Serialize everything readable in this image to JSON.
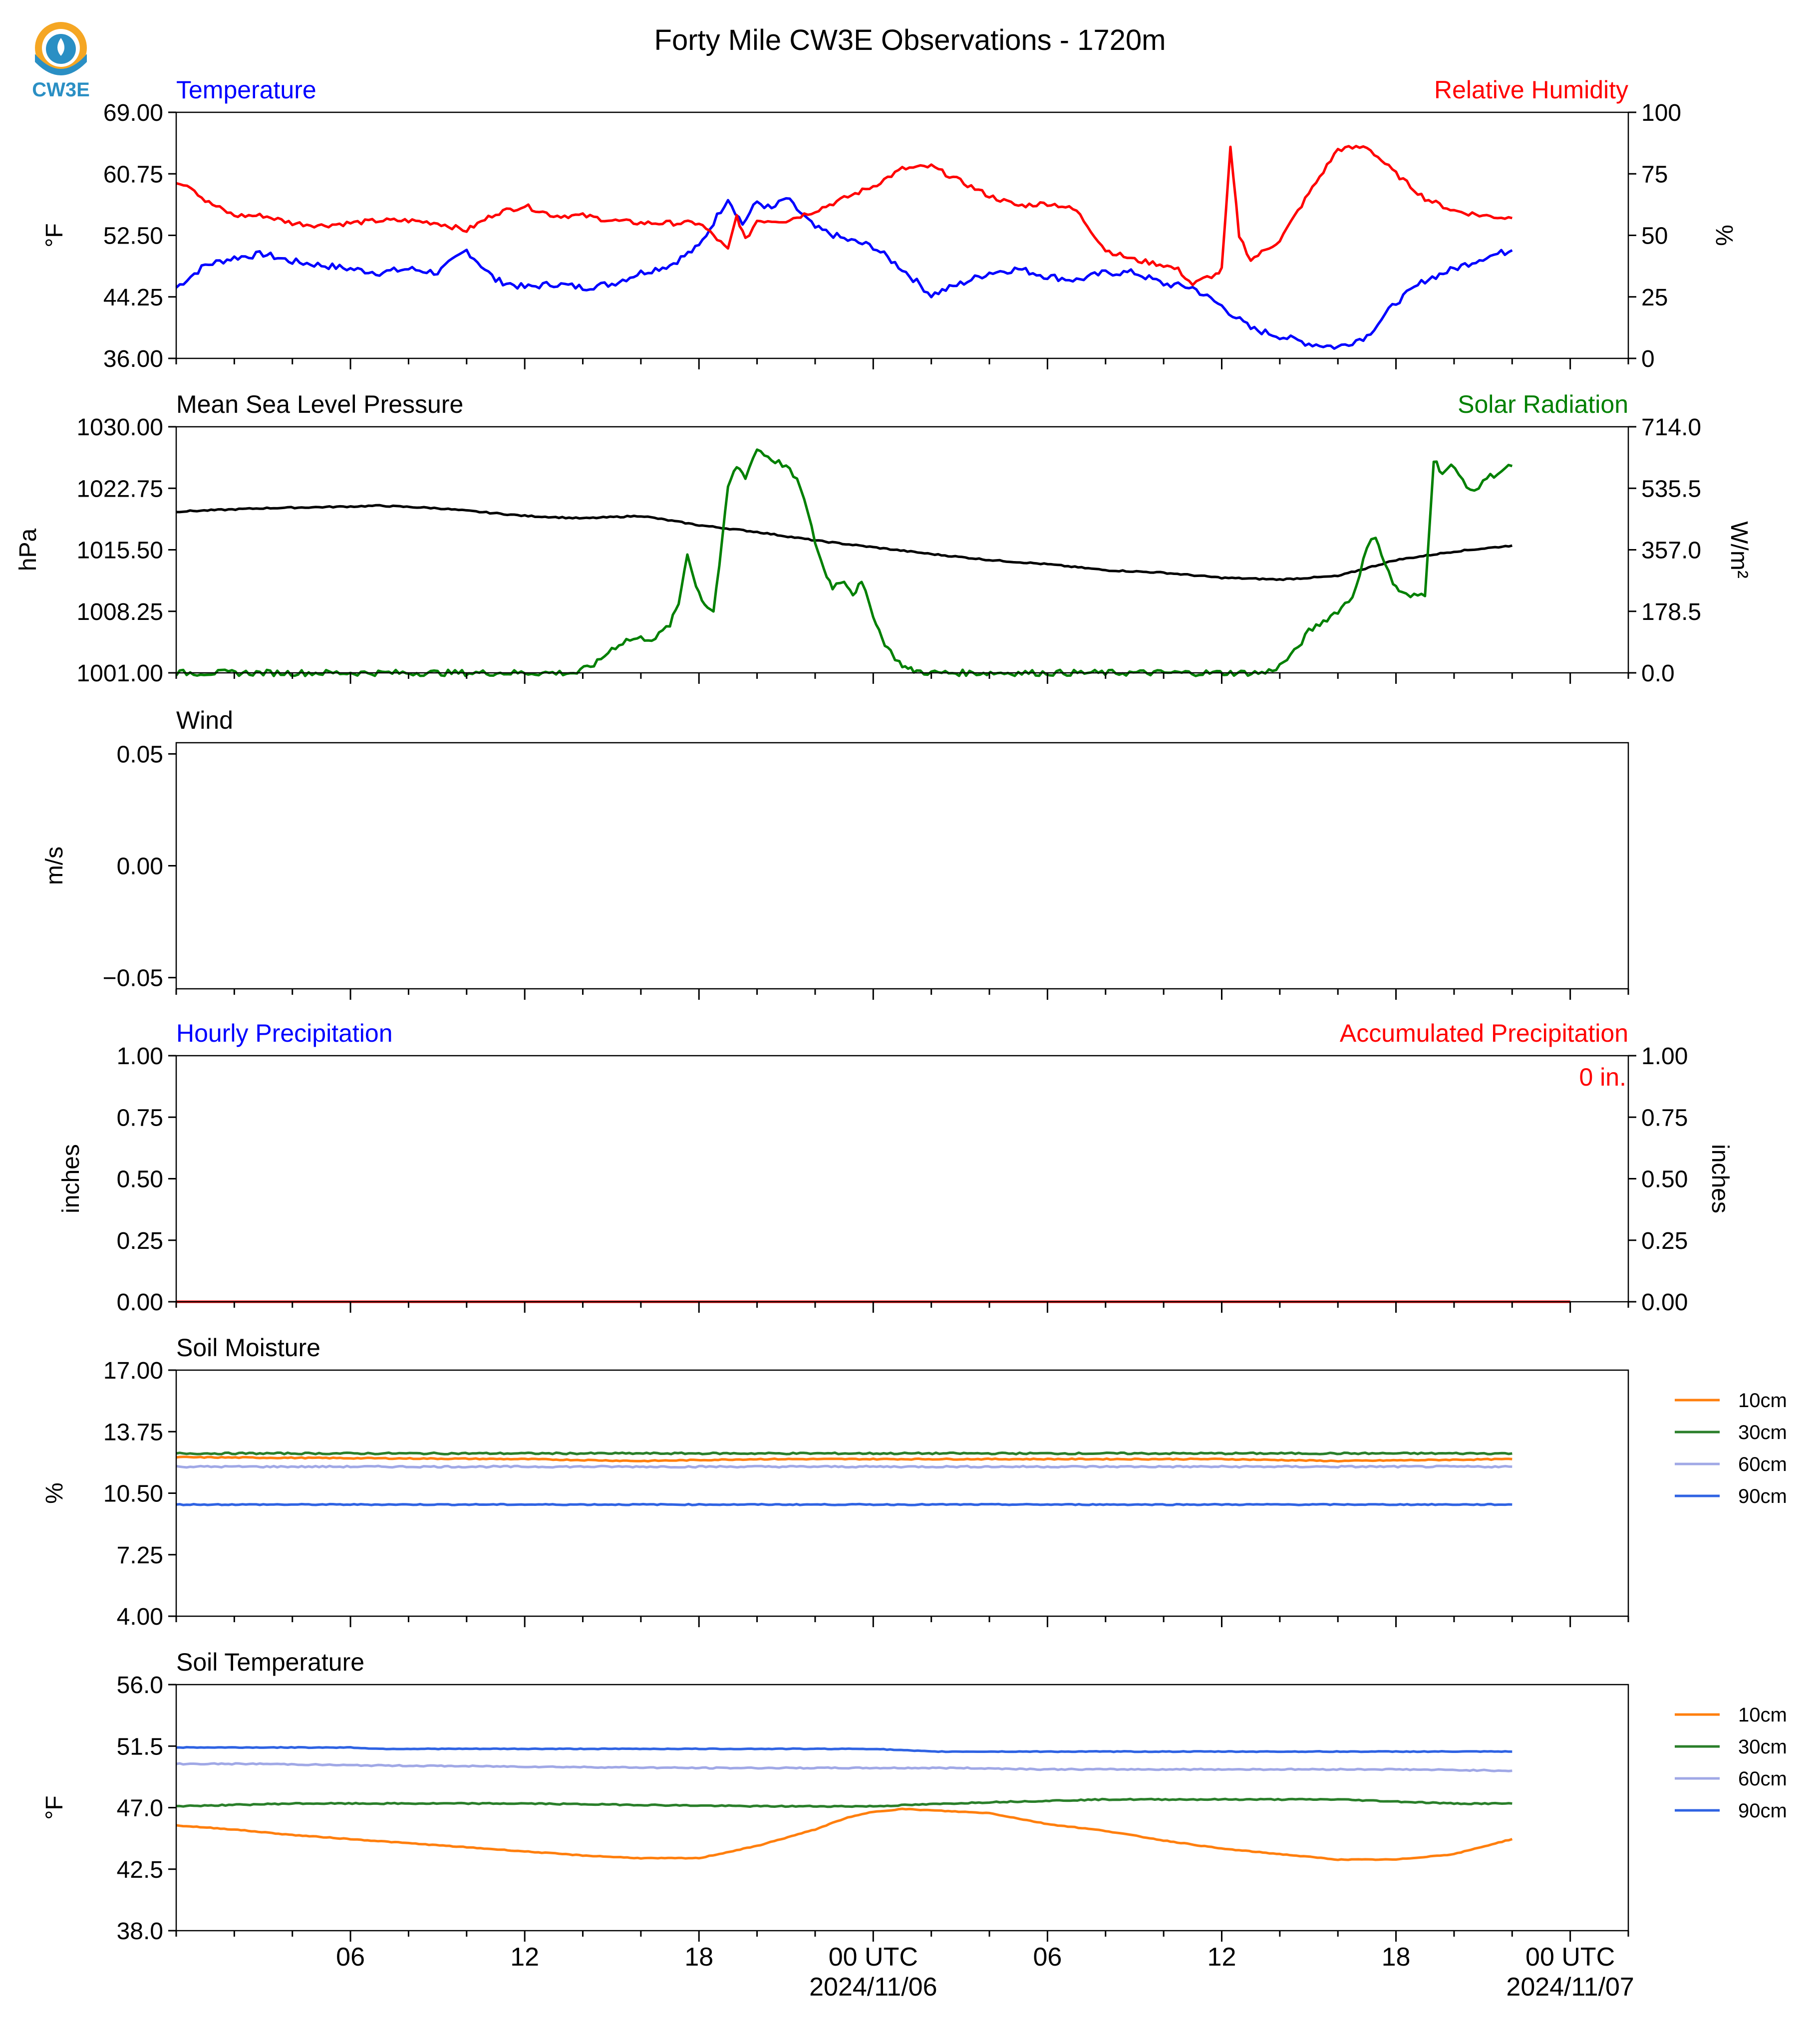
{
  "title": "Forty Mile CW3E Observations - 1720m",
  "logo_text": "CW3E",
  "colors": {
    "temperature": "#0000ff",
    "humidity": "#ff0000",
    "pressure": "#000000",
    "solar": "#008000",
    "hourly_precip": "#0000ff",
    "accum_precip": "#ff0000",
    "soil_10": "#ff7f0e",
    "soil_30": "#2a7f2a",
    "soil_60": "#a0a8e6",
    "soil_90": "#2f63e3",
    "logo_orange": "#f5a623",
    "logo_blue": "#2a8fc4"
  },
  "time_axis": {
    "start": "2024-11-05 00 UTC",
    "end": "2024-11-07 02 UTC",
    "data_end": "2024-11-06 22 UTC",
    "major_tick_labels": [
      {
        "hour": 6,
        "label": "06",
        "date": ""
      },
      {
        "hour": 12,
        "label": "12",
        "date": ""
      },
      {
        "hour": 18,
        "label": "18",
        "date": ""
      },
      {
        "hour": 24,
        "label": "00 UTC",
        "date": "2024/11/06"
      },
      {
        "hour": 30,
        "label": "06",
        "date": ""
      },
      {
        "hour": 36,
        "label": "12",
        "date": ""
      },
      {
        "hour": 42,
        "label": "18",
        "date": ""
      },
      {
        "hour": 48,
        "label": "00 UTC",
        "date": "2024/11/07"
      }
    ]
  },
  "chart_data": [
    {
      "type": "line",
      "left_title": "Temperature",
      "right_title": "Relative Humidity",
      "ylabel": "°F",
      "ylabel_right": "%",
      "ylim": [
        36.0,
        69.0
      ],
      "yticks": [
        "69.00",
        "60.75",
        "52.50",
        "44.25",
        "36.00"
      ],
      "ylim_right": [
        0,
        100
      ],
      "yticks_right": [
        "100",
        "75",
        "50",
        "25",
        "0"
      ],
      "series": [
        {
          "key": "temperature",
          "axis": "left",
          "x": [
            0,
            1,
            2,
            3,
            4,
            5,
            6,
            7,
            8,
            9,
            10,
            11,
            12,
            13,
            14,
            15,
            16,
            17,
            18,
            19,
            19.5,
            20,
            20.5,
            21,
            21.5,
            22,
            23,
            24,
            25,
            26,
            27,
            28,
            29,
            30,
            31,
            32,
            33,
            34,
            35,
            36,
            37,
            38,
            39,
            40,
            41,
            42,
            43,
            44,
            45,
            46
          ],
          "values": [
            45.5,
            48.5,
            49.5,
            50.0,
            49.0,
            48.5,
            48.0,
            47.5,
            48.0,
            47.5,
            50.5,
            46.5,
            45.5,
            46.0,
            45.5,
            46.0,
            47.5,
            48.5,
            51.0,
            57.5,
            54.0,
            57.0,
            56.0,
            57.5,
            55.5,
            53.5,
            52.0,
            51.0,
            48.0,
            44.5,
            46.0,
            47.5,
            48.0,
            47.0,
            46.5,
            47.5,
            47.5,
            46.0,
            45.5,
            43.0,
            40.0,
            39.0,
            38.0,
            37.5,
            39.0,
            43.5,
            46.5,
            48.0,
            49.5,
            50.5
          ]
        },
        {
          "key": "humidity",
          "axis": "right",
          "x": [
            0,
            0.5,
            1,
            2,
            3,
            4,
            5,
            6,
            7,
            8,
            9,
            10,
            11,
            12,
            13,
            14,
            15,
            16,
            17,
            18,
            18.5,
            19,
            19.3,
            19.6,
            20,
            21,
            22,
            23,
            24,
            25,
            26,
            27,
            28,
            29,
            30,
            30.5,
            31,
            32,
            33,
            34,
            34.5,
            35,
            35.5,
            35.8,
            36,
            36.3,
            36.6,
            37,
            38,
            39,
            40,
            41,
            42,
            43,
            44,
            45,
            46
          ],
          "values": [
            72,
            70,
            64,
            58,
            58,
            55,
            54,
            55,
            56,
            56,
            55,
            52,
            59,
            62,
            58,
            58,
            56,
            55,
            55,
            55,
            50,
            44,
            58,
            48,
            56,
            56,
            60,
            65,
            70,
            77,
            78,
            72,
            66,
            62,
            63,
            62,
            60,
            44,
            40,
            38,
            36,
            30,
            33,
            34,
            36,
            85,
            50,
            40,
            48,
            67,
            85,
            86,
            75,
            65,
            60,
            58,
            57
          ]
        }
      ]
    },
    {
      "type": "line",
      "left_title": "Mean Sea Level Pressure",
      "right_title": "Solar Radiation",
      "ylabel": "hPa",
      "ylabel_right": "W/m²",
      "ylim": [
        1001.0,
        1030.0
      ],
      "yticks": [
        "1030.00",
        "1022.75",
        "1015.50",
        "1008.25",
        "1001.00"
      ],
      "ylim_right": [
        0,
        714.0
      ],
      "yticks_right": [
        "714.0",
        "535.5",
        "357.0",
        "178.5",
        "0.0"
      ],
      "series": [
        {
          "key": "pressure",
          "axis": "left",
          "x": [
            0,
            3,
            6,
            7,
            9,
            12,
            14,
            16,
            18,
            20,
            22,
            24,
            26,
            28,
            30,
            32,
            34,
            36,
            38,
            40,
            42,
            44,
            46
          ],
          "values": [
            1020.0,
            1020.4,
            1020.6,
            1020.7,
            1020.4,
            1019.5,
            1019.2,
            1019.5,
            1018.4,
            1017.6,
            1016.6,
            1015.8,
            1015.0,
            1014.3,
            1013.8,
            1013.1,
            1012.8,
            1012.2,
            1012.0,
            1012.4,
            1014.3,
            1015.3,
            1016.0
          ]
        },
        {
          "key": "solar",
          "axis": "right",
          "x": [
            0,
            13.8,
            14.5,
            15,
            15.5,
            16,
            16.5,
            17,
            17.3,
            17.6,
            17.9,
            18.2,
            18.5,
            18.8,
            19,
            19.3,
            19.6,
            20,
            20.5,
            21,
            21.5,
            22,
            22.3,
            22.6,
            23,
            23.3,
            23.6,
            24,
            24.3,
            24.6,
            24.9,
            25.2,
            25.5,
            26,
            37.5,
            38,
            38.5,
            39,
            39.5,
            40,
            40.5,
            41,
            41.3,
            41.6,
            41.9,
            42.2,
            42.5,
            43,
            43.3,
            43.6,
            43.9,
            44.3,
            44.7,
            45,
            45.5,
            46
          ],
          "values": [
            0,
            0,
            30,
            70,
            95,
            100,
            100,
            140,
            200,
            350,
            250,
            200,
            180,
            380,
            540,
            600,
            570,
            650,
            620,
            600,
            540,
            380,
            300,
            250,
            270,
            230,
            260,
            170,
            100,
            60,
            30,
            10,
            5,
            0,
            0,
            20,
            60,
            120,
            150,
            180,
            220,
            360,
            400,
            320,
            260,
            230,
            220,
            230,
            620,
            580,
            600,
            560,
            520,
            560,
            580,
            600
          ]
        }
      ]
    },
    {
      "type": "line",
      "left_title": "Wind",
      "right_title": "",
      "ylabel": "m/s",
      "ylim": [
        -0.055,
        0.055
      ],
      "yticks": [
        "0.05",
        "0.00",
        "−0.05"
      ],
      "series": []
    },
    {
      "type": "line",
      "left_title": "Hourly Precipitation",
      "right_title": "Accumulated Precipitation",
      "annotation": "0 in.",
      "ylabel": "inches",
      "ylabel_right": "inches",
      "ylim": [
        0,
        1.0
      ],
      "yticks": [
        "1.00",
        "0.75",
        "0.50",
        "0.25",
        "0.00"
      ],
      "ylim_right": [
        0,
        1.0
      ],
      "yticks_right": [
        "1.00",
        "0.75",
        "0.50",
        "0.25",
        "0.00"
      ],
      "series": [
        {
          "key": "accum_precip",
          "axis": "right",
          "x": [
            0,
            48
          ],
          "values": [
            0,
            0
          ]
        }
      ]
    },
    {
      "type": "line",
      "left_title": "Soil Moisture",
      "right_title": "",
      "ylabel": "%",
      "ylim": [
        4.0,
        17.0
      ],
      "yticks": [
        "17.00",
        "13.75",
        "10.50",
        "7.25",
        "4.00"
      ],
      "legend": "right",
      "series": [
        {
          "name": "10cm",
          "key": "soil_10",
          "x": [
            0,
            12,
            16,
            20,
            24,
            30,
            36,
            40,
            46
          ],
          "values": [
            12.4,
            12.3,
            12.2,
            12.3,
            12.3,
            12.3,
            12.3,
            12.2,
            12.3
          ]
        },
        {
          "name": "30cm",
          "key": "soil_30",
          "x": [
            0,
            12,
            24,
            36,
            46
          ],
          "values": [
            12.6,
            12.6,
            12.6,
            12.6,
            12.6
          ]
        },
        {
          "name": "60cm",
          "key": "soil_60",
          "x": [
            0,
            12,
            24,
            36,
            40,
            44,
            46
          ],
          "values": [
            11.9,
            11.9,
            11.9,
            11.9,
            11.9,
            11.9,
            11.9
          ]
        },
        {
          "name": "90cm",
          "key": "soil_90",
          "x": [
            0,
            12,
            24,
            36,
            46
          ],
          "values": [
            9.9,
            9.9,
            9.9,
            9.9,
            9.9
          ]
        }
      ]
    },
    {
      "type": "line",
      "left_title": "Soil Temperature",
      "right_title": "",
      "ylabel": "°F",
      "ylim": [
        38.0,
        56.0
      ],
      "yticks": [
        "56.0",
        "51.5",
        "47.0",
        "42.5",
        "38.0"
      ],
      "legend": "right",
      "series": [
        {
          "name": "10cm",
          "key": "soil_10",
          "x": [
            0,
            2,
            4,
            6,
            8,
            10,
            12,
            14,
            16,
            18,
            20,
            22,
            23,
            24,
            25,
            26,
            28,
            30,
            32,
            34,
            36,
            38,
            40,
            42,
            44,
            46
          ],
          "values": [
            45.7,
            45.4,
            45.0,
            44.7,
            44.4,
            44.1,
            43.8,
            43.5,
            43.3,
            43.3,
            44.2,
            45.4,
            46.2,
            46.7,
            46.9,
            46.8,
            46.6,
            45.8,
            45.3,
            44.6,
            44.0,
            43.6,
            43.2,
            43.2,
            43.6,
            44.7
          ]
        },
        {
          "name": "30cm",
          "key": "soil_30",
          "x": [
            0,
            4,
            8,
            12,
            16,
            20,
            24,
            28,
            32,
            36,
            40,
            44,
            46
          ],
          "values": [
            47.1,
            47.3,
            47.3,
            47.3,
            47.2,
            47.1,
            47.1,
            47.4,
            47.6,
            47.6,
            47.6,
            47.3,
            47.3
          ]
        },
        {
          "name": "60cm",
          "key": "soil_60",
          "x": [
            0,
            3,
            6,
            12,
            18,
            24,
            27,
            30,
            36,
            42,
            46
          ],
          "values": [
            50.2,
            50.2,
            50.1,
            50.0,
            49.9,
            49.9,
            49.9,
            49.8,
            49.8,
            49.8,
            49.7
          ]
        },
        {
          "name": "90cm",
          "key": "soil_90",
          "x": [
            0,
            6,
            7,
            12,
            18,
            24,
            26,
            30,
            36,
            42,
            46
          ],
          "values": [
            51.4,
            51.4,
            51.3,
            51.3,
            51.3,
            51.3,
            51.1,
            51.1,
            51.1,
            51.1,
            51.1
          ]
        }
      ]
    }
  ]
}
